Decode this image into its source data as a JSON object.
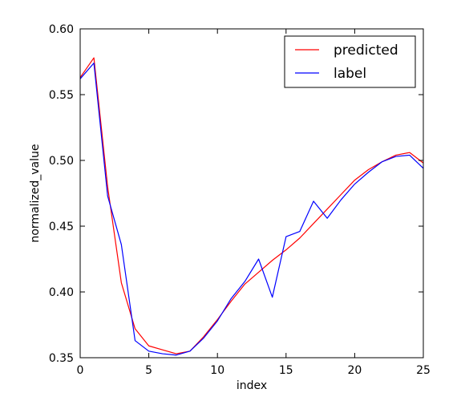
{
  "chart_data": {
    "type": "line",
    "title": "",
    "xlabel": "index",
    "ylabel": "normalized_value",
    "xlim": [
      0,
      25
    ],
    "ylim": [
      0.35,
      0.6
    ],
    "xticks": [
      0,
      5,
      10,
      15,
      20,
      25
    ],
    "xtick_labels": [
      "0",
      "5",
      "10",
      "15",
      "20",
      "25"
    ],
    "yticks": [
      0.35,
      0.4,
      0.45,
      0.5,
      0.55,
      0.6
    ],
    "ytick_labels": [
      "0.35",
      "0.40",
      "0.45",
      "0.50",
      "0.55",
      "0.60"
    ],
    "grid": false,
    "legend_position": "top-right",
    "x": [
      0,
      1,
      2,
      3,
      4,
      5,
      6,
      7,
      8,
      9,
      10,
      11,
      12,
      13,
      14,
      15,
      16,
      17,
      18,
      19,
      20,
      21,
      22,
      23,
      24,
      25
    ],
    "series": [
      {
        "name": "predicted",
        "color": "#ff0000",
        "values": [
          0.563,
          0.578,
          0.48,
          0.407,
          0.372,
          0.359,
          0.356,
          0.353,
          0.355,
          0.366,
          0.379,
          0.393,
          0.406,
          0.415,
          0.424,
          0.432,
          0.441,
          0.452,
          0.463,
          0.474,
          0.485,
          0.493,
          0.499,
          0.504,
          0.506,
          0.498
        ]
      },
      {
        "name": "label",
        "color": "#0000ff",
        "values": [
          0.562,
          0.574,
          0.473,
          0.436,
          0.363,
          0.355,
          0.353,
          0.352,
          0.355,
          0.365,
          0.378,
          0.395,
          0.408,
          0.425,
          0.396,
          0.442,
          0.446,
          0.469,
          0.456,
          0.47,
          0.482,
          0.491,
          0.499,
          0.503,
          0.504,
          0.494
        ]
      }
    ]
  }
}
